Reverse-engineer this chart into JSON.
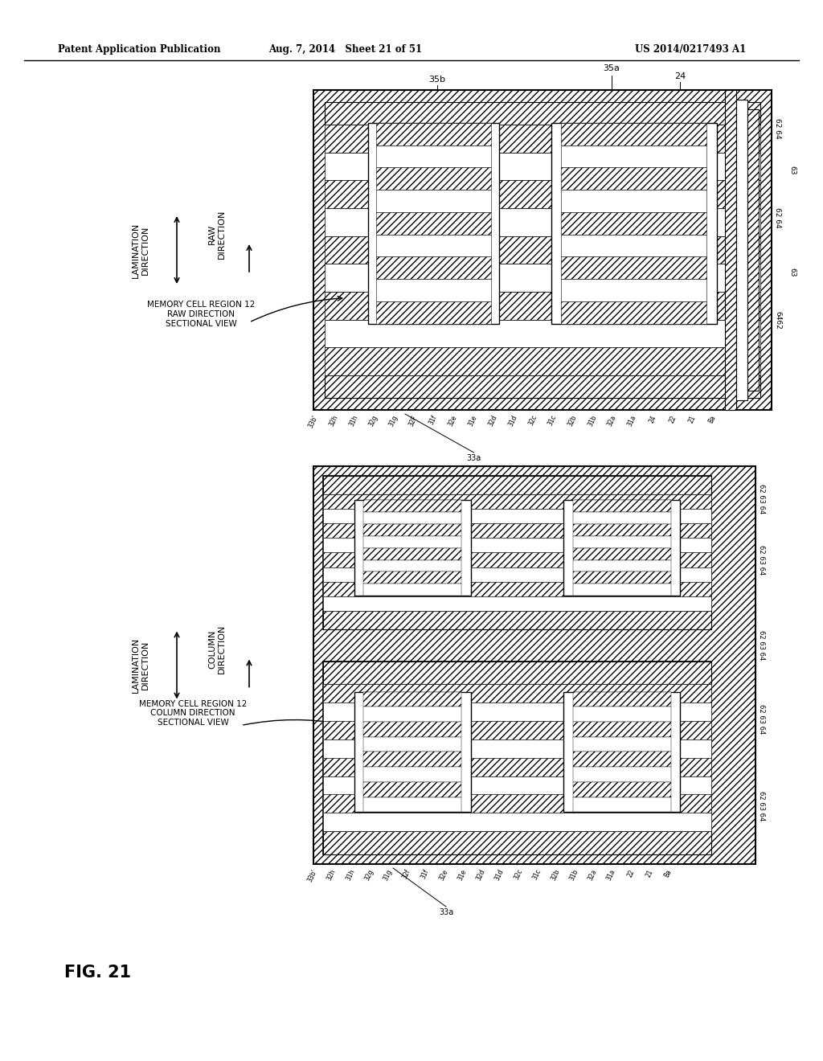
{
  "header_left": "Patent Application Publication",
  "header_mid": "Aug. 7, 2014   Sheet 21 of 51",
  "header_right": "US 2014/0217493 A1",
  "title": "FIG. 21",
  "bg_color": "#ffffff"
}
